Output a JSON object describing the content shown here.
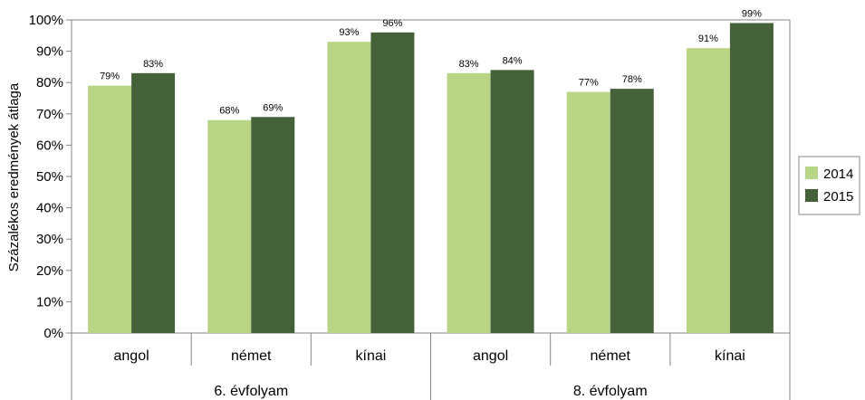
{
  "chart_data": {
    "type": "bar",
    "ylabel": "Százalékos eredmények átlaga",
    "ylim": [
      0,
      100
    ],
    "y_ticks": [
      "0%",
      "10%",
      "20%",
      "30%",
      "40%",
      "50%",
      "60%",
      "70%",
      "80%",
      "90%",
      "100%"
    ],
    "groups": [
      {
        "label": "6. évfolyam",
        "categories": [
          "angol",
          "német",
          "kínai"
        ]
      },
      {
        "label": "8. évfolyam",
        "categories": [
          "angol",
          "német",
          "kínai"
        ]
      }
    ],
    "series": [
      {
        "name": "2014",
        "color": "#b8d585",
        "values": [
          79,
          68,
          93,
          83,
          77,
          91
        ],
        "labels": [
          "79%",
          "68%",
          "93%",
          "83%",
          "77%",
          "91%"
        ]
      },
      {
        "name": "2015",
        "color": "#45613a",
        "values": [
          83,
          69,
          96,
          84,
          78,
          99
        ],
        "labels": [
          "83%",
          "69%",
          "96%",
          "84%",
          "78%",
          "99%"
        ]
      }
    ],
    "legend_position": "right",
    "grid": false
  }
}
